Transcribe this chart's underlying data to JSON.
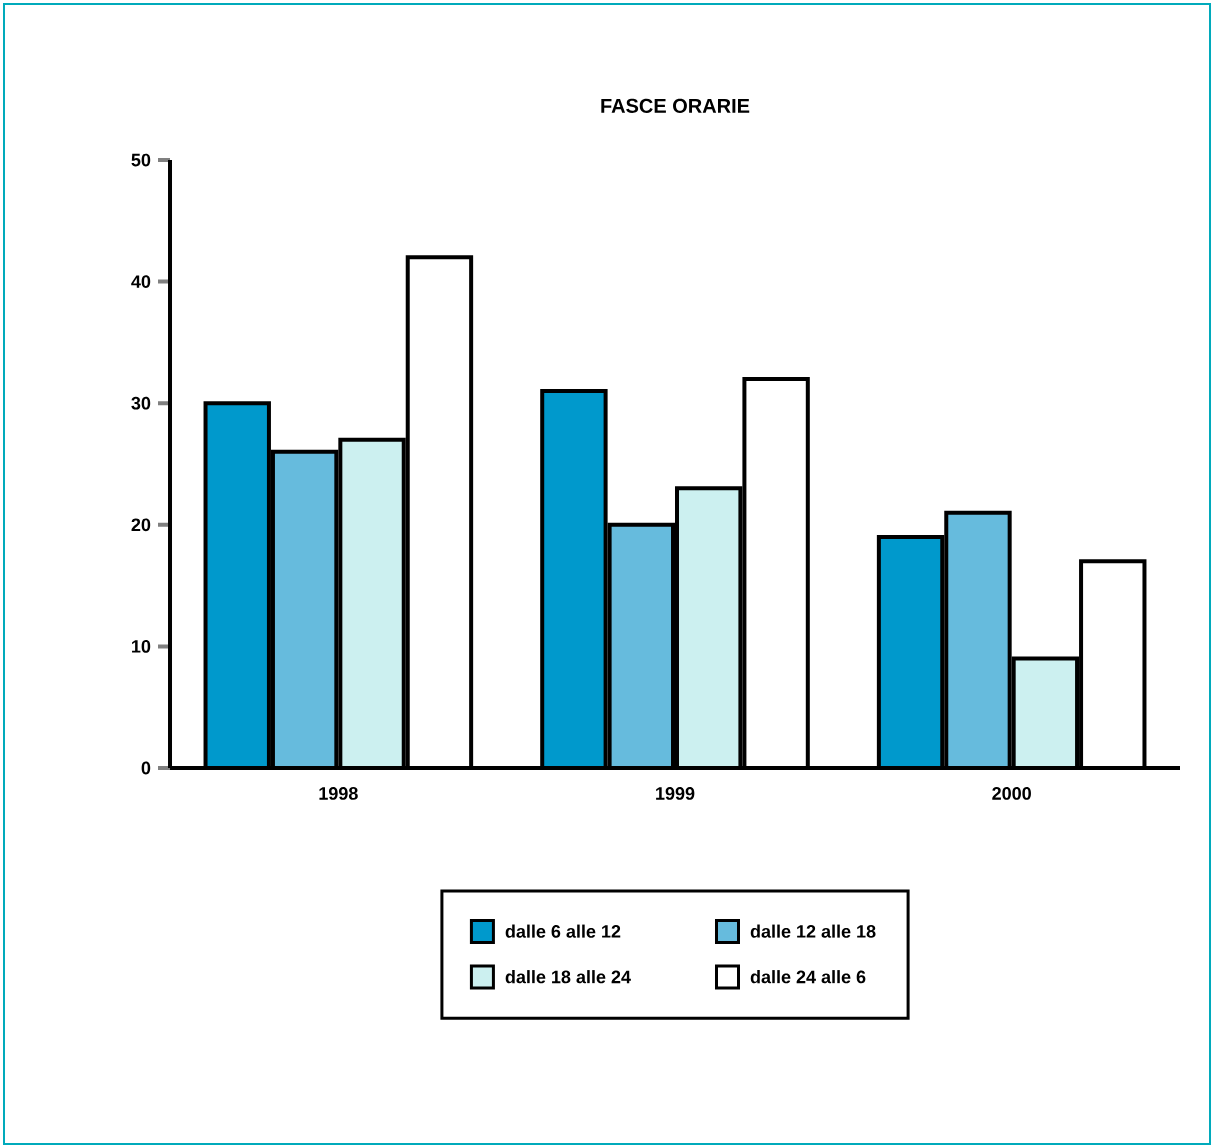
{
  "chart_data": {
    "type": "bar",
    "title": "FASCE ORARIE",
    "categories": [
      "1998",
      "1999",
      "2000"
    ],
    "series": [
      {
        "name": "dalle 6 alle 12",
        "color": "#0099cc",
        "values": [
          30,
          31,
          19
        ]
      },
      {
        "name": "dalle 12 alle 18",
        "color": "#66bbdd",
        "values": [
          26,
          20,
          21
        ]
      },
      {
        "name": "dalle 18 alle 24",
        "color": "#ccf0f0",
        "values": [
          27,
          23,
          9
        ]
      },
      {
        "name": "dalle 24 alle 6",
        "color": "#ffffff",
        "values": [
          42,
          32,
          17
        ]
      }
    ],
    "ylim": [
      0,
      50
    ],
    "yticks": [
      0,
      10,
      20,
      30,
      40,
      50
    ],
    "legend": "bottom"
  }
}
